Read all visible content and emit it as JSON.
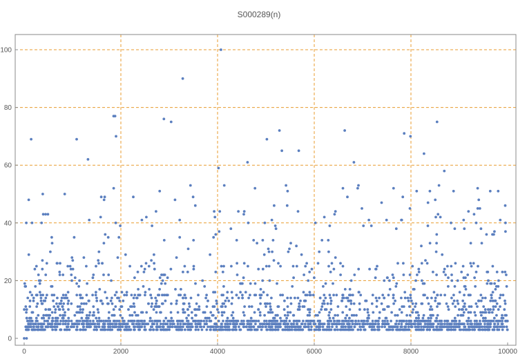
{
  "chart_data": {
    "type": "scatter",
    "title": "S000289(n)",
    "xlabel": "",
    "ylabel": "",
    "xlim": [
      0,
      10000
    ],
    "ylim": [
      0,
      100
    ],
    "xticks": [
      "0",
      "2000",
      "4000",
      "6000",
      "8000",
      "10000"
    ],
    "yticks": [
      "0",
      "20",
      "40",
      "60",
      "80",
      "100"
    ],
    "grid": true,
    "colors": {
      "points": "#5b7fbf",
      "grid": "#e89b2c",
      "frame": "#888888",
      "text": "#555555"
    },
    "series": [
      {
        "notable_points": [
          {
            "x": 0,
            "y": 0
          },
          {
            "x": 50,
            "y": 0
          },
          {
            "x": 145,
            "y": 69
          },
          {
            "x": 1085,
            "y": 69
          },
          {
            "x": 1320,
            "y": 62
          },
          {
            "x": 1850,
            "y": 77
          },
          {
            "x": 1880,
            "y": 77
          },
          {
            "x": 1900,
            "y": 70
          },
          {
            "x": 2890,
            "y": 76
          },
          {
            "x": 3040,
            "y": 75
          },
          {
            "x": 3280,
            "y": 90
          },
          {
            "x": 4070,
            "y": 100
          },
          {
            "x": 4020,
            "y": 59
          },
          {
            "x": 4620,
            "y": 61
          },
          {
            "x": 5020,
            "y": 69
          },
          {
            "x": 5280,
            "y": 72
          },
          {
            "x": 5330,
            "y": 65
          },
          {
            "x": 5680,
            "y": 65
          },
          {
            "x": 6630,
            "y": 72
          },
          {
            "x": 6820,
            "y": 61
          },
          {
            "x": 7860,
            "y": 71
          },
          {
            "x": 7990,
            "y": 70
          },
          {
            "x": 8270,
            "y": 64
          },
          {
            "x": 8540,
            "y": 75
          },
          {
            "x": 8690,
            "y": 58
          },
          {
            "x": 9380,
            "y": 52
          },
          {
            "x": 9640,
            "y": 51
          },
          {
            "x": 9950,
            "y": 46
          }
        ],
        "bulk_distribution_note": "about 10000 points; dense band y=1-20, thinning above, sparse to ~60"
      }
    ]
  }
}
